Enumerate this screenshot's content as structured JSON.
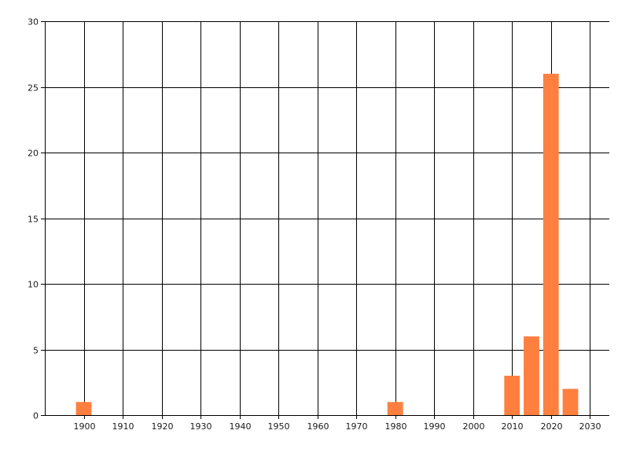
{
  "chart_data": {
    "type": "bar",
    "title": "",
    "xlabel": "",
    "ylabel": "",
    "x": [
      1900,
      1980,
      2010,
      2015,
      2020,
      2025
    ],
    "values": [
      1,
      1,
      3,
      6,
      26,
      2
    ],
    "bar_width_years": 4,
    "xlim": [
      1890,
      2035
    ],
    "ylim": [
      0,
      30
    ],
    "x_ticks": [
      1900,
      1910,
      1920,
      1930,
      1940,
      1950,
      1960,
      1970,
      1980,
      1990,
      2000,
      2010,
      2020,
      2030
    ],
    "y_ticks": [
      0,
      5,
      10,
      15,
      20,
      25,
      30
    ],
    "grid": true,
    "legend": "none",
    "bar_color": "#FF7F3F",
    "grid_color": "#000000"
  }
}
